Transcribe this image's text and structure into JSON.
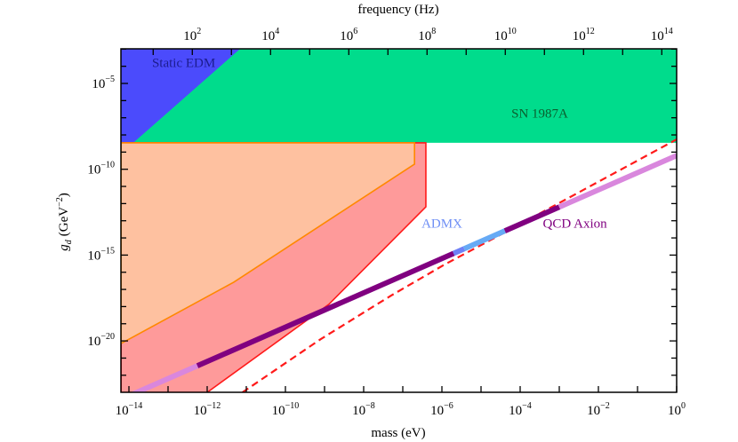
{
  "chart_data": {
    "type": "area",
    "title": "",
    "xlabel": "mass (eV)",
    "x2label": "frequency (Hz)",
    "ylabel_main": "g",
    "ylabel_sub": "d",
    "ylabel_unit": "(GeV",
    "ylabel_unit_exp": "−2",
    "ylabel_close": ")",
    "xscale": "log",
    "yscale": "log",
    "xlim_log10": [
      -14.2,
      0
    ],
    "ylim_log10": [
      -23.0,
      -2.93
    ],
    "grid": false,
    "x_ticks": [
      {
        "base": "10",
        "exp": "−14",
        "v": -14
      },
      {
        "base": "10",
        "exp": "−12",
        "v": -12
      },
      {
        "base": "10",
        "exp": "−10",
        "v": -10
      },
      {
        "base": "10",
        "exp": "−8",
        "v": -8
      },
      {
        "base": "10",
        "exp": "−6",
        "v": -6
      },
      {
        "base": "10",
        "exp": "−4",
        "v": -4
      },
      {
        "base": "10",
        "exp": "−2",
        "v": -2
      },
      {
        "base": "10",
        "exp": "0",
        "v": 0
      }
    ],
    "x2_ticks": [
      {
        "base": "10",
        "exp": "2",
        "v": 2
      },
      {
        "base": "10",
        "exp": "4",
        "v": 4
      },
      {
        "base": "10",
        "exp": "6",
        "v": 6
      },
      {
        "base": "10",
        "exp": "8",
        "v": 8
      },
      {
        "base": "10",
        "exp": "10",
        "v": 10
      },
      {
        "base": "10",
        "exp": "12",
        "v": 12
      },
      {
        "base": "10",
        "exp": "14",
        "v": 14
      }
    ],
    "y_ticks": [
      {
        "base": "10",
        "exp": "−5",
        "v": -5
      },
      {
        "base": "10",
        "exp": "−10",
        "v": -10
      },
      {
        "base": "10",
        "exp": "−15",
        "v": -15
      },
      {
        "base": "10",
        "exp": "−20",
        "v": -20
      }
    ],
    "regions": [
      {
        "name": "SN 1987A",
        "label": "SN 1987A",
        "fill": "#00dc8c",
        "stroke": "none",
        "text_color": "#0b5e2e",
        "points_log10": [
          [
            -14.2,
            -2.93
          ],
          [
            0,
            -2.93
          ],
          [
            0,
            -8.46
          ],
          [
            -14.2,
            -8.46
          ]
        ],
        "label_at": [
          -3.5,
          -7.0
        ]
      },
      {
        "name": "Static EDM",
        "label": "Static EDM",
        "fill": "#4b4bfc",
        "stroke": "none",
        "text_color": "#1c1c8e",
        "points_log10": [
          [
            -14.2,
            -2.93
          ],
          [
            -11.13,
            -2.93
          ],
          [
            -14.2,
            -9.08
          ]
        ],
        "label_at": [
          -12.6,
          -4.05
        ]
      },
      {
        "name": "red-region",
        "label": "",
        "fill": "#fe9a9a",
        "stroke": "#ff1a1a",
        "points_log10": [
          [
            -14.2,
            -8.46
          ],
          [
            -6.41,
            -8.46
          ],
          [
            -6.41,
            -12.19
          ],
          [
            -8.89,
            -17.87
          ],
          [
            -12.0,
            -23.0
          ],
          [
            -14.2,
            -23.0
          ]
        ]
      },
      {
        "name": "orange-region",
        "label": "",
        "fill": "#fec1a0",
        "stroke": "#ff8800",
        "points_log10": [
          [
            -14.2,
            -8.46
          ],
          [
            -6.7,
            -8.46
          ],
          [
            -6.7,
            -9.7
          ],
          [
            -11.32,
            -16.58
          ],
          [
            -14.2,
            -20.15
          ]
        ]
      }
    ],
    "lines": [
      {
        "name": "projected-sensitivity",
        "style": "dashed",
        "color": "#ff1a1a",
        "points_log10": [
          [
            -11.1,
            -23.0
          ],
          [
            -9.1,
            -19.9
          ],
          [
            -7.3,
            -17.36
          ],
          [
            -5.93,
            -15.55
          ],
          [
            -4.4,
            -13.69
          ],
          [
            0,
            -8.26
          ]
        ]
      },
      {
        "name": "QCD Axion",
        "label": "QCD Axion",
        "text_color": "#800080",
        "relation": "log10 g = log10 m − 9.2",
        "segments": [
          {
            "from": -14.2,
            "to": -12.25,
            "color": "#d987dd"
          },
          {
            "from": -12.25,
            "to": -5.7,
            "color": "#800080"
          },
          {
            "from": -5.7,
            "to": -5.43,
            "color": "#6f80f6"
          },
          {
            "from": -5.43,
            "to": -4.39,
            "color": "#66aaf5"
          },
          {
            "from": -4.39,
            "to": -3.0,
            "color": "#800080"
          },
          {
            "from": -3.0,
            "to": 0,
            "color": "#d987dd"
          }
        ],
        "label_at": [
          -2.6,
          -13.4
        ]
      },
      {
        "name": "ADMX",
        "label": "ADMX",
        "text_color": "#6f8ff5",
        "label_at": [
          -6.0,
          -13.4
        ]
      }
    ]
  }
}
